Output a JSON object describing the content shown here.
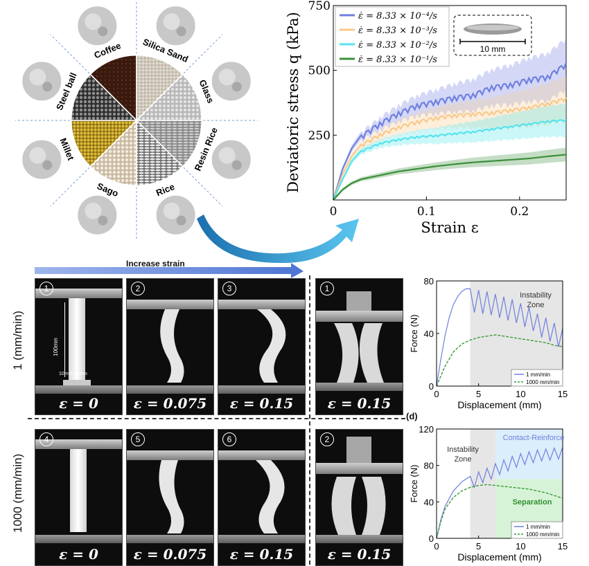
{
  "wheel": {
    "materials": [
      "Coffee",
      "Silica Sand",
      "Glass",
      "Resin Rice",
      "Rice",
      "Sago",
      "Millet",
      "Steel ball"
    ]
  },
  "chart_main": {
    "ylabel": "Deviatoric stress q (kPa)",
    "xlabel": "Strain ε",
    "y_ticks": [
      "250",
      "500",
      "750"
    ],
    "x_ticks": [
      "0",
      "0.1",
      "0.2"
    ],
    "legend": [
      "ε̇ = 8.33 × 10⁻⁴/s",
      "ε̇ = 8.33 × 10⁻³/s",
      "ε̇ = 8.33 × 10⁻²/s",
      "ε̇ = 8.33 × 10⁻¹/s"
    ],
    "inset_scale": "10 mm",
    "colors": [
      "#6f7fe0",
      "#f9c98a",
      "#55e4ec",
      "#3a8f3a"
    ]
  },
  "photos": {
    "banner": "Increase strain",
    "row1_label": "1 (mm/min)",
    "row2_label": "1000 (mm/min)",
    "dim_height": "100mm",
    "dim_width": "10mm 10mm",
    "steps": [
      "1",
      "2",
      "3",
      "4",
      "5",
      "6"
    ],
    "strains": [
      "ε = 0",
      "ε = 0.075",
      "ε = 0.15",
      "ε = 0",
      "ε = 0.075",
      "ε = 0.15"
    ],
    "pair_steps": [
      "1",
      "2"
    ],
    "pair_strains": [
      "ε = 0.15",
      "ε = 0.15"
    ]
  },
  "panel_d_label": "(d)",
  "chart_data": [
    {
      "type": "line",
      "xlabel": "Strain ε",
      "ylabel": "Deviatoric stress q (kPa)",
      "xlim": [
        0,
        0.25
      ],
      "ylim": [
        0,
        750
      ],
      "series": [
        {
          "name": "ε̇ = 8.33 × 10⁻⁴/s",
          "x": [
            0,
            0.01,
            0.02,
            0.03,
            0.05,
            0.07,
            0.09,
            0.11,
            0.13,
            0.15,
            0.17,
            0.19,
            0.21,
            0.23,
            0.25
          ],
          "values": [
            0,
            120,
            200,
            250,
            300,
            340,
            370,
            385,
            400,
            410,
            440,
            450,
            470,
            480,
            530
          ]
        },
        {
          "name": "ε̇ = 8.33 × 10⁻³/s",
          "x": [
            0,
            0.01,
            0.02,
            0.03,
            0.05,
            0.07,
            0.09,
            0.11,
            0.13,
            0.15,
            0.17,
            0.19,
            0.21,
            0.23,
            0.25
          ],
          "values": [
            0,
            100,
            170,
            215,
            255,
            285,
            305,
            320,
            330,
            335,
            340,
            350,
            360,
            375,
            395
          ]
        },
        {
          "name": "ε̇ = 8.33 × 10⁻²/s",
          "x": [
            0,
            0.01,
            0.02,
            0.03,
            0.05,
            0.07,
            0.09,
            0.11,
            0.13,
            0.15,
            0.17,
            0.19,
            0.21,
            0.23,
            0.25
          ],
          "values": [
            0,
            80,
            150,
            190,
            220,
            235,
            245,
            250,
            258,
            265,
            275,
            285,
            295,
            305,
            310
          ]
        },
        {
          "name": "ε̇ = 8.33 × 10⁻¹/s",
          "x": [
            0,
            0.01,
            0.02,
            0.03,
            0.05,
            0.07,
            0.09,
            0.11,
            0.13,
            0.15,
            0.17,
            0.19,
            0.21,
            0.23,
            0.25
          ],
          "values": [
            0,
            40,
            65,
            80,
            95,
            110,
            120,
            130,
            138,
            145,
            150,
            155,
            160,
            168,
            175
          ]
        }
      ]
    },
    {
      "type": "line",
      "xlabel": "Displacement (mm)",
      "ylabel": "Force (N)",
      "xlim": [
        0,
        15
      ],
      "ylim": [
        0,
        80
      ],
      "x_ticks": [
        0,
        5,
        10,
        15
      ],
      "y_ticks": [
        0,
        40,
        80
      ],
      "annotations": [
        "Instability",
        "Zone"
      ],
      "series": [
        {
          "name": "1 mm/min",
          "x": [
            0,
            0.5,
            1,
            1.5,
            2,
            2.5,
            3,
            3.5,
            4,
            5,
            6,
            7,
            8,
            9,
            10,
            11,
            12,
            13,
            14,
            15
          ],
          "values": [
            0,
            20,
            38,
            52,
            62,
            68,
            72,
            74,
            74,
            73,
            72,
            70,
            68,
            66,
            63,
            60,
            55,
            52,
            48,
            44
          ]
        },
        {
          "name": "1000 mm/min",
          "x": [
            0,
            1,
            2,
            3,
            4,
            5,
            6,
            7,
            8,
            9,
            10,
            11,
            12,
            13,
            14,
            15
          ],
          "values": [
            0,
            15,
            26,
            32,
            35,
            37,
            38,
            39,
            38,
            37,
            36,
            35,
            34,
            33,
            31,
            30
          ]
        }
      ]
    },
    {
      "type": "line",
      "xlabel": "Displacement (mm)",
      "ylabel": "Force (N)",
      "xlim": [
        0,
        15
      ],
      "ylim": [
        0,
        120
      ],
      "x_ticks": [
        0,
        5,
        10,
        15
      ],
      "y_ticks": [
        0,
        40,
        80,
        120
      ],
      "annotations": [
        "Contact-Reinforce",
        "Instability",
        "Zone",
        "Separation"
      ],
      "series": [
        {
          "name": "1 mm/min",
          "x": [
            0,
            0.5,
            1,
            2,
            3,
            4,
            5,
            6,
            7,
            8,
            9,
            10,
            11,
            12,
            13,
            14,
            15
          ],
          "values": [
            0,
            20,
            35,
            52,
            62,
            68,
            73,
            77,
            82,
            86,
            90,
            93,
            95,
            97,
            98,
            99,
            100
          ]
        },
        {
          "name": "1000 mm/min",
          "x": [
            0,
            0.5,
            1,
            2,
            3,
            4,
            5,
            6,
            7,
            8,
            9,
            10,
            11,
            12,
            13,
            14,
            15
          ],
          "values": [
            0,
            18,
            32,
            45,
            52,
            56,
            58,
            59,
            58,
            57,
            56,
            55,
            54,
            52,
            50,
            47,
            44
          ]
        }
      ]
    }
  ]
}
